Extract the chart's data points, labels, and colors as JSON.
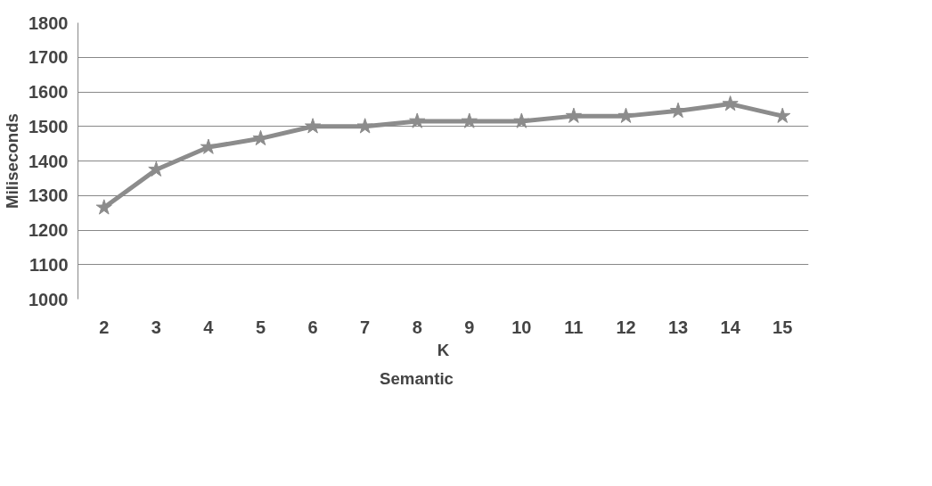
{
  "chart_data": {
    "type": "line",
    "xlabel": "K",
    "ylabel": "Miliseconds",
    "categories": [
      "2",
      "3",
      "4",
      "5",
      "6",
      "7",
      "8",
      "9",
      "10",
      "11",
      "12",
      "13",
      "14",
      "15"
    ],
    "series": [
      {
        "name": "Semantic",
        "color": "#8c8c8c",
        "values": [
          1265,
          1375,
          1440,
          1465,
          1500,
          1500,
          1515,
          1515,
          1515,
          1530,
          1530,
          1545,
          1565,
          1530
        ]
      }
    ],
    "ylim": [
      1000,
      1800
    ],
    "yticks": [
      1000,
      1100,
      1200,
      1300,
      1400,
      1500,
      1600,
      1700,
      1800
    ],
    "grid": "y",
    "legend": "bottom",
    "marker": "star",
    "line_style": "solid"
  }
}
